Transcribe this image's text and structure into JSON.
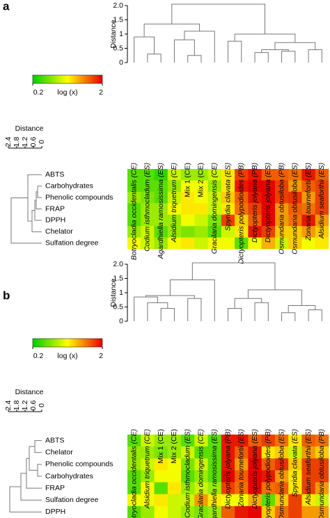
{
  "chart_data": [
    {
      "type": "heatmap",
      "panel": "a",
      "columns": [
        "Botryocladia occidentalis (CE)",
        "Codium isthmocladum (ES)",
        "Agardhiella ramosissima (ES)",
        "Alsidium triquetrum (CE)",
        "Mix 1 (CE)",
        "Mix 2 (CE)",
        "Gracilaria domingensis (CE)",
        "Spyridia clavata (ES)",
        "Dictyopteris polypodioides (PB)",
        "Dictyopteris jolyana (PB)",
        "Dictyopteris jolyana (ES)",
        "Osmundaria obtusiloba (PB)",
        "Osmundaria obtusiloba (ES)",
        "Zonaria tournefortii (ES)",
        "Alsidium seaforthii (ES)"
      ],
      "rows": [
        "ABTS",
        "Carbohydrates",
        "Phenolic compounds",
        "FRAP",
        "DPPH",
        "Chelator",
        "Sulfation degree"
      ],
      "values": [
        [
          0.3,
          0.3,
          0.25,
          0.5,
          0.4,
          0.4,
          0.5,
          0.7,
          1.5,
          1.8,
          1.3,
          1.3,
          1.2,
          1.8,
          1.3
        ],
        [
          0.3,
          0.3,
          0.3,
          0.4,
          0.6,
          0.6,
          0.4,
          0.7,
          1.8,
          2,
          2,
          1.5,
          1,
          1.3,
          1.5
        ],
        [
          0.4,
          0.35,
          0.3,
          0.5,
          0.7,
          0.6,
          0.5,
          0.8,
          1.3,
          1.8,
          2,
          1.5,
          1.6,
          1,
          1.5
        ],
        [
          0.3,
          0.4,
          0.4,
          0.6,
          0.7,
          0.7,
          0.5,
          0.7,
          1.2,
          1.5,
          2,
          1,
          1.3,
          1.2,
          1.5
        ],
        [
          0.3,
          0.4,
          0.4,
          0.4,
          0.6,
          0.5,
          0.35,
          1.5,
          0.8,
          1.3,
          2,
          1,
          1.2,
          1.8,
          1
        ],
        [
          0.4,
          0.5,
          0.3,
          0.4,
          0.35,
          0.4,
          0.3,
          0.5,
          0.7,
          1.8,
          1.5,
          0.8,
          0.8,
          1,
          0.8
        ],
        [
          0.6,
          0.5,
          0.4,
          0.6,
          0.7,
          0.5,
          0.6,
          0.6,
          0.3,
          0.6,
          0.9,
          0.5,
          0.8,
          0.6,
          0.7
        ]
      ],
      "colorbar": {
        "label": "log (x)",
        "scale": "log",
        "lim": [
          0.2,
          2
        ],
        "ticks": [
          0.2,
          2
        ]
      },
      "y_label": "Distance",
      "ylim": [
        0,
        2
      ],
      "yticks": [
        0,
        0.5,
        1,
        1.5,
        {
          "value": 2,
          "label": "2.0"
        }
      ],
      "x_label": "Distance",
      "xlim": [
        2.4,
        0
      ],
      "xticks": [
        2.4,
        1.8,
        1.2,
        0.6,
        0
      ],
      "column_tree": [
        2.05,
        [
          1.35,
          [
            0.9,
            0,
            [
              0.3,
              1,
              2
            ]
          ],
          [
            1.1,
            [
              0.8,
              3,
              [
                0.25,
                4,
                5
              ]
            ],
            6
          ]
        ],
        [
          1.0,
          [
            0.75,
            7,
            8
          ],
          [
            0.7,
            [
              0.45,
              [
                0.35,
                9,
                10
              ],
              [
                0.4,
                11,
                12
              ]
            ],
            [
              0.45,
              13,
              14
            ]
          ]
        ]
      ],
      "row_tree": [
        2.2,
        [
          1.0,
          0,
          [
            0.7,
            [
              0.5,
              [
                0.4,
                [
                  0.3,
                  1,
                  2
                ],
                3
              ],
              4
            ],
            5
          ]
        ],
        6
      ]
    },
    {
      "type": "heatmap",
      "panel": "b",
      "columns": [
        "Botryocladia occidentalis (CE)",
        "Alsidium triquetrum (CE)",
        "Mix 1 (CE)",
        "Mix 2 (CE)",
        "Codium isthmocladum (ES)",
        "Gracilaria domingensis (CE)",
        "Agardhiella ramosissima (ES)",
        "Dictyopteris jolyana (PB)",
        "Zonaria tournefortii (ES)",
        "Dictyopteris jolyana (ES)",
        "Dictyopteris polypodioides (PB)",
        "Osmundaria obtusiloba (ES)",
        "Spyridia clavata (ES)",
        "Alsidium seaforthii (ES)",
        "Osmundaria obtusiloba (PB)"
      ],
      "rows": [
        "ABTS",
        "Chelator",
        "Phenolic compounds",
        "Carbohydrates",
        "FRAP",
        "Sulfation degree",
        "DPPH"
      ],
      "values": [
        [
          0.3,
          0.5,
          0.4,
          0.4,
          0.3,
          0.5,
          0.3,
          1.8,
          1.8,
          1.3,
          1.5,
          1.2,
          0.7,
          1.3,
          1.2
        ],
        [
          0.4,
          0.4,
          0.35,
          0.4,
          0.5,
          0.3,
          0.3,
          1.8,
          1.3,
          1.8,
          0.7,
          0.8,
          0.5,
          1,
          0.8
        ],
        [
          0.4,
          0.5,
          0.7,
          0.6,
          0.35,
          0.5,
          0.3,
          1.8,
          1,
          2,
          1.3,
          1.6,
          0.8,
          1.5,
          1.5
        ],
        [
          0.3,
          0.4,
          0.6,
          0.6,
          0.3,
          0.4,
          0.3,
          2,
          1.3,
          2,
          1.8,
          1,
          0.7,
          1.5,
          1.5
        ],
        [
          0.3,
          0.6,
          0.3,
          0.7,
          0.4,
          0.5,
          0.4,
          1.5,
          1.2,
          2,
          1.2,
          1.3,
          0.7,
          1.5,
          1
        ],
        [
          0.6,
          0.6,
          0.7,
          0.5,
          0.5,
          1,
          0.7,
          0.6,
          0.6,
          0.9,
          0.3,
          0.8,
          1.5,
          0.7,
          0.5
        ],
        [
          0.3,
          0.4,
          0.6,
          0.5,
          0.4,
          0.35,
          0.4,
          1.3,
          1.8,
          2,
          0.8,
          1.2,
          1.5,
          1,
          1
        ]
      ],
      "colorbar": {
        "label": "log (x)",
        "scale": "log",
        "lim": [
          0.2,
          2
        ],
        "ticks": [
          0.2,
          2
        ]
      },
      "y_label": "Distance",
      "ylim": [
        0,
        2
      ],
      "yticks": [
        0,
        0.5,
        1,
        1.5,
        {
          "value": 2,
          "label": "2.0"
        }
      ],
      "x_label": "Distance",
      "xlim": [
        2.4,
        0
      ],
      "xticks": [
        2.4,
        1.8,
        1.2,
        0.6,
        0
      ],
      "column_tree": [
        2.05,
        [
          1.45,
          [
            0.9,
            [
              0.85,
              0,
              [
                0.65,
                1,
                [
                  0.45,
                  2,
                  3
                ]
              ]
            ],
            [
              0.8,
              4,
              5
            ]
          ],
          6
        ],
        [
          1.1,
          [
            0.8,
            [
              0.45,
              7,
              8
            ],
            [
              0.65,
              9,
              10
            ]
          ],
          [
            0.55,
            [
              0.3,
              11,
              12
            ],
            [
              0.4,
              13,
              14
            ]
          ]
        ]
      ],
      "row_tree": [
        2.3,
        [
          1.5,
          [
            1.1,
            [
              0.9,
              [
                0.5,
                0,
                1
              ],
              [
                0.3,
                2,
                3
              ]
            ],
            4
          ],
          5
        ],
        6
      ]
    }
  ]
}
